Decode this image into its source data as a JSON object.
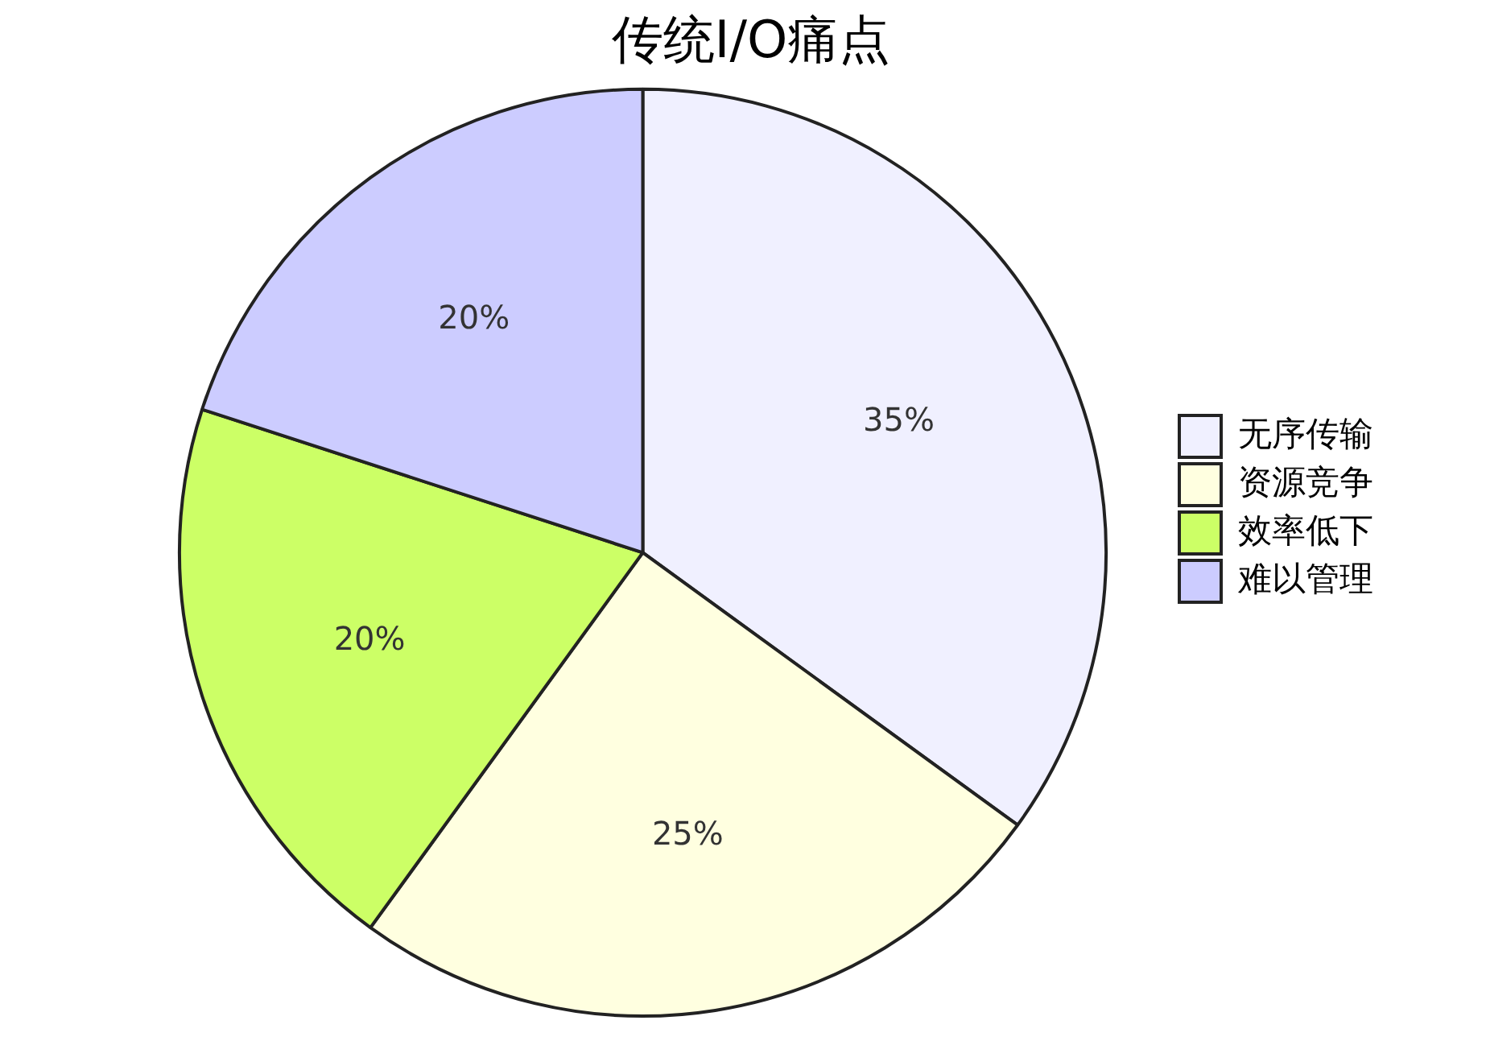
{
  "chart_data": {
    "type": "pie",
    "title": "传统I/O痛点",
    "categories": [
      "无序传输",
      "资源竞争",
      "效率低下",
      "难以管理"
    ],
    "values": [
      35,
      25,
      20,
      20
    ],
    "value_labels": [
      "35%",
      "25%",
      "20%",
      "20%"
    ],
    "colors": [
      "#f0f0ff",
      "#ffffe0",
      "#ccff66",
      "#ccccff"
    ],
    "legend": "right"
  }
}
